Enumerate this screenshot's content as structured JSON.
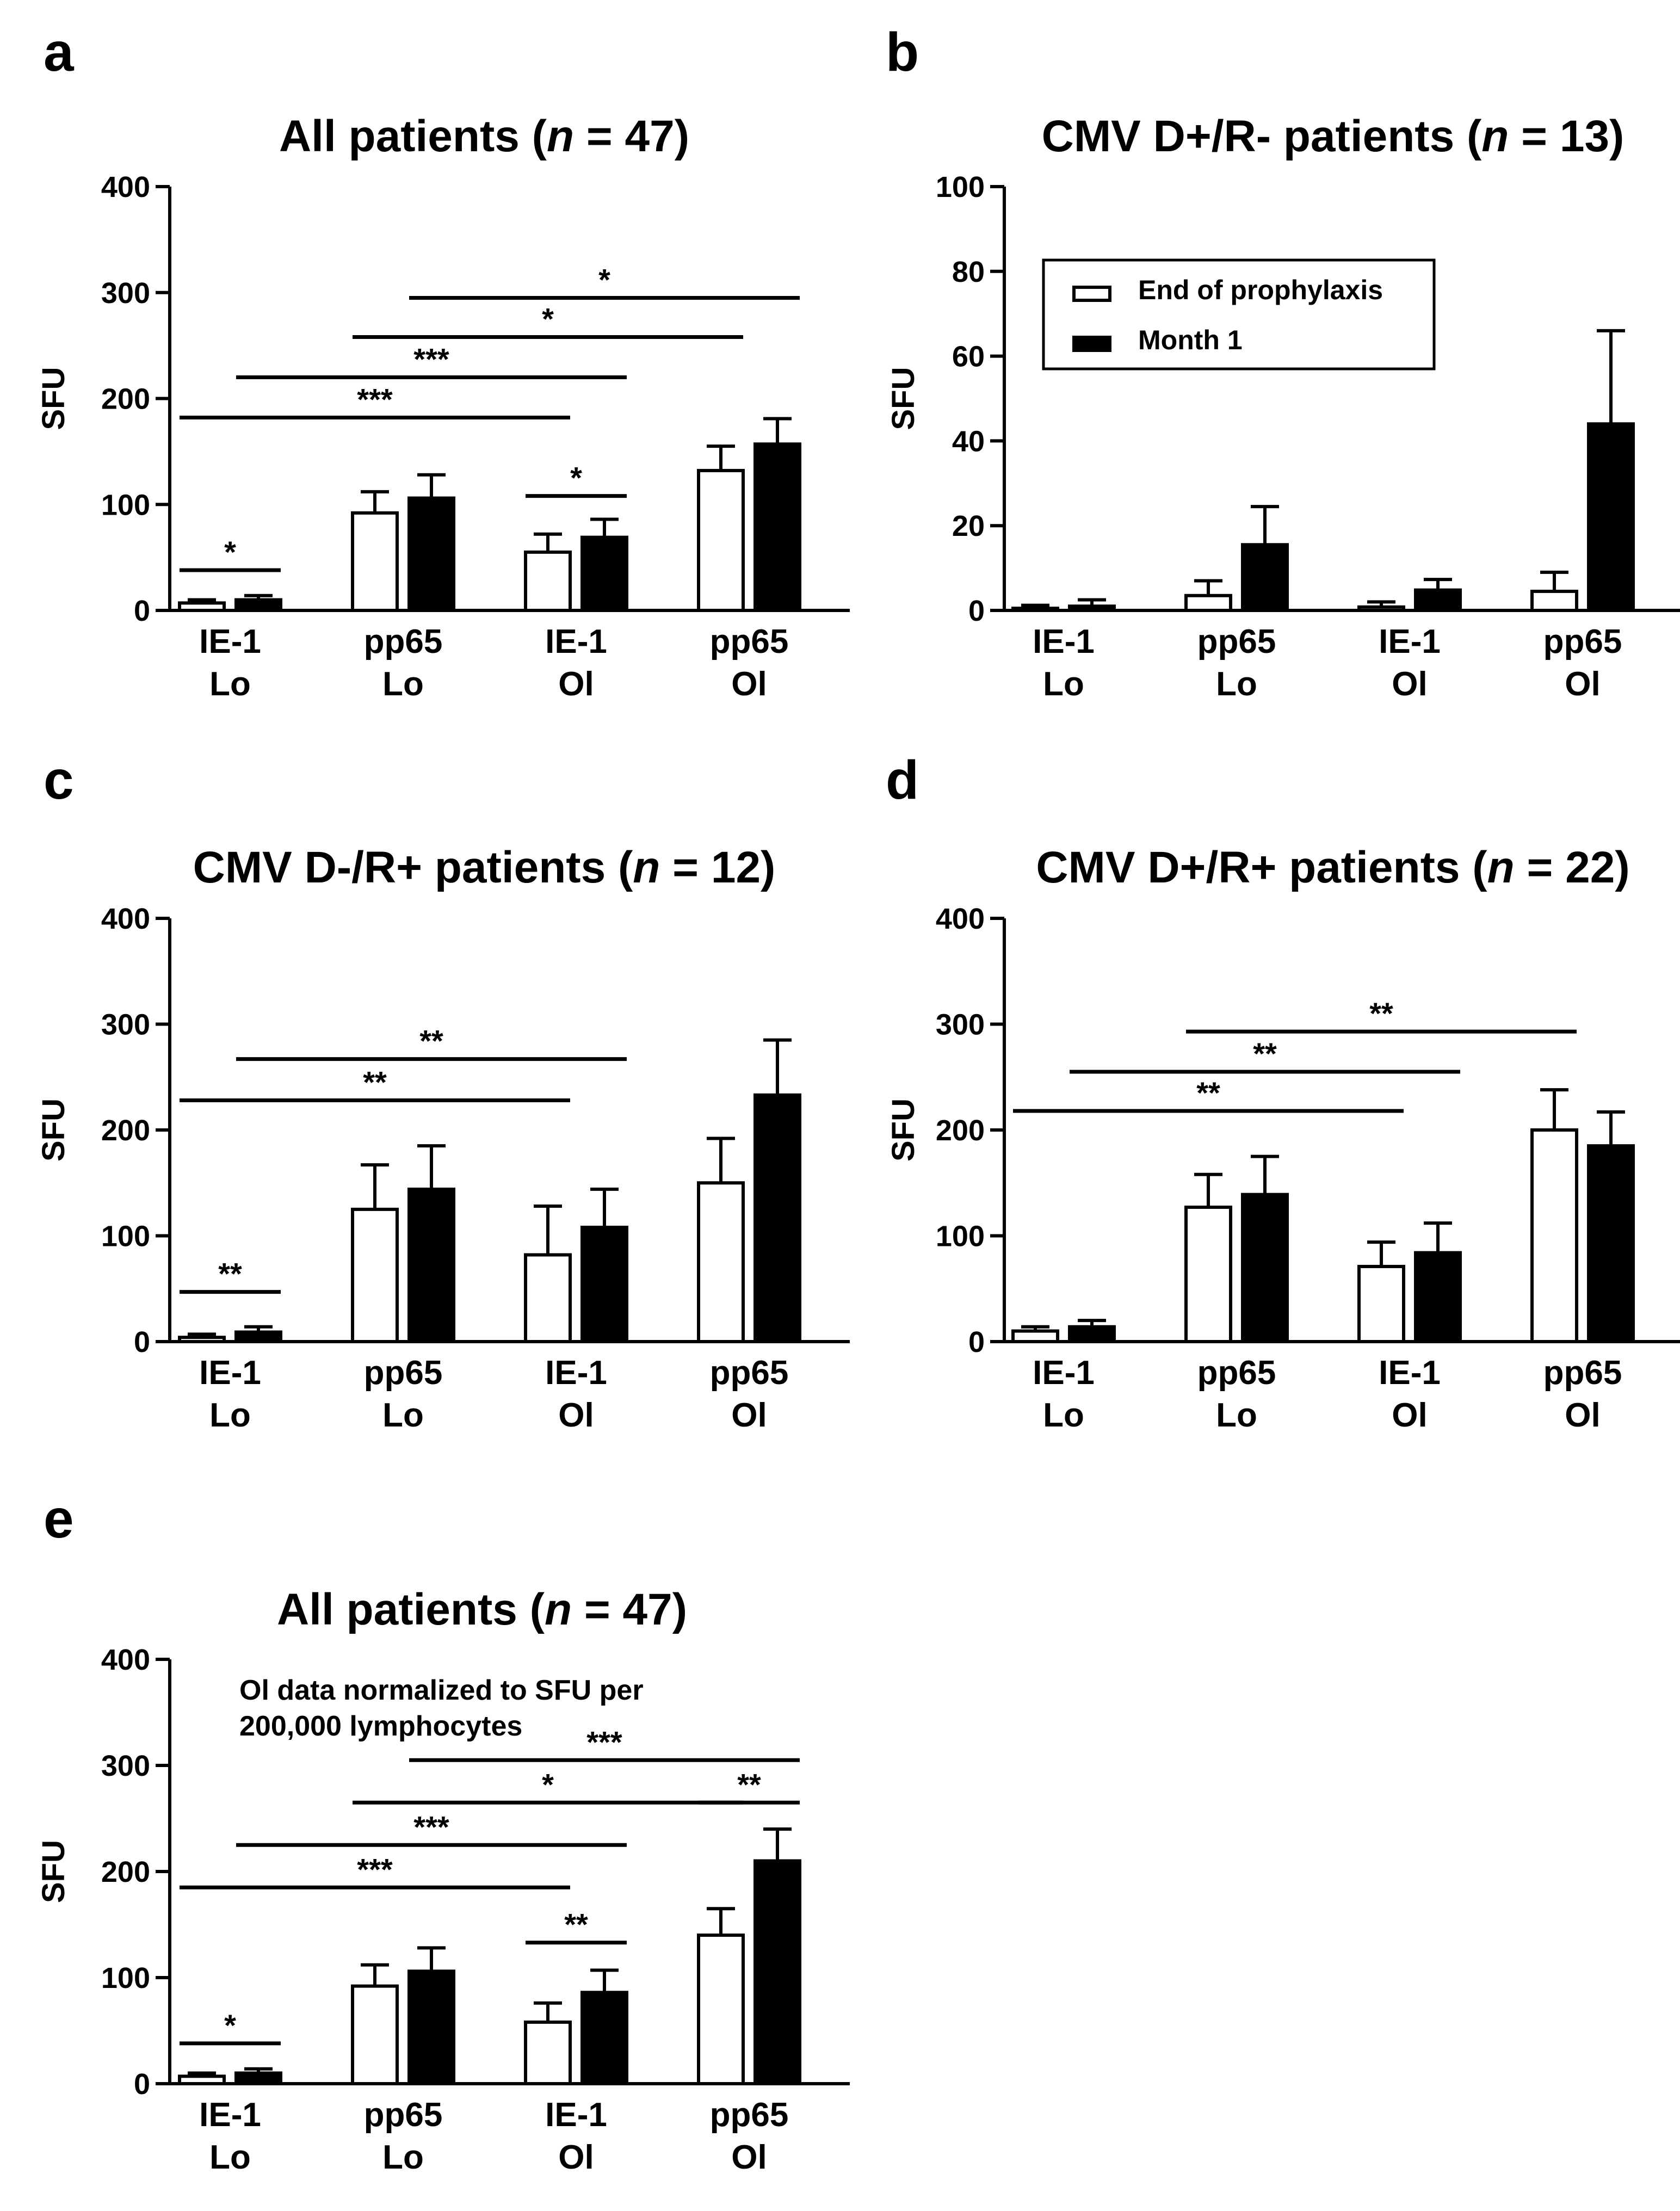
{
  "legend": {
    "items": [
      {
        "label": "End of prophylaxis",
        "fill": "#ffffff"
      },
      {
        "label": "Month 1",
        "fill": "#000000"
      }
    ]
  },
  "chart_data": [
    {
      "id": "a",
      "type": "bar",
      "panel_letter": "a",
      "title": "All patients (n = 47)",
      "title_parts": [
        "All patients (",
        "n",
        " = 47)"
      ],
      "ylabel": "SFU",
      "ylim": [
        0,
        400
      ],
      "yticks": [
        "0",
        "100",
        "200",
        "300",
        "400"
      ],
      "categories": [
        [
          "IE-1",
          "Lo"
        ],
        [
          "pp65",
          "Lo"
        ],
        [
          "IE-1",
          "Ol"
        ],
        [
          "pp65",
          "Ol"
        ]
      ],
      "series": [
        {
          "name": "End of prophylaxis",
          "values": [
            7,
            92,
            55,
            132
          ],
          "errors": [
            3,
            20,
            17,
            23
          ]
        },
        {
          "name": "Month 1",
          "values": [
            10,
            106,
            69,
            157
          ],
          "errors": [
            4,
            22,
            17,
            24
          ]
        }
      ],
      "significance": [
        {
          "label": "*",
          "from": [
            0,
            0
          ],
          "to": [
            0,
            1
          ],
          "y": 38
        },
        {
          "label": "***",
          "from": [
            0,
            0
          ],
          "to": [
            2,
            0
          ],
          "y": 182
        },
        {
          "label": "***",
          "from": [
            0,
            1
          ],
          "to": [
            2,
            1
          ],
          "y": 220
        },
        {
          "label": "*",
          "from": [
            1,
            0
          ],
          "to": [
            3,
            0
          ],
          "y": 258
        },
        {
          "label": "*",
          "from": [
            1,
            1
          ],
          "to": [
            3,
            1
          ],
          "y": 295
        },
        {
          "label": "*",
          "from": [
            2,
            0
          ],
          "to": [
            2,
            1
          ],
          "y": 108
        }
      ]
    },
    {
      "id": "b",
      "type": "bar",
      "panel_letter": "b",
      "title": "CMV D+/R- patients (n = 13)",
      "title_parts": [
        "CMV D+/R- patients (",
        "n",
        " = 13)"
      ],
      "ylabel": "SFU",
      "ylim": [
        0,
        100
      ],
      "yticks": [
        "0",
        "20",
        "40",
        "60",
        "80",
        "100"
      ],
      "categories": [
        [
          "IE-1",
          "Lo"
        ],
        [
          "pp65",
          "Lo"
        ],
        [
          "IE-1",
          "Ol"
        ],
        [
          "pp65",
          "Ol"
        ]
      ],
      "series": [
        {
          "name": "End of prophylaxis",
          "values": [
            0.5,
            3.5,
            0.8,
            4.5
          ],
          "errors": [
            0.7,
            3.5,
            1.2,
            4.5
          ]
        },
        {
          "name": "Month 1",
          "values": [
            1,
            15.5,
            4.8,
            44
          ],
          "errors": [
            1.5,
            9,
            2.5,
            22
          ]
        }
      ],
      "significance": [],
      "legend": "top-left"
    },
    {
      "id": "c",
      "type": "bar",
      "panel_letter": "c",
      "title": "CMV D-/R+ patients (n = 12)",
      "title_parts": [
        "CMV D-/R+ patients (",
        "n",
        " = 12)"
      ],
      "ylabel": "SFU",
      "ylim": [
        0,
        400
      ],
      "yticks": [
        "0",
        "100",
        "200",
        "300",
        "400"
      ],
      "categories": [
        [
          "IE-1",
          "Lo"
        ],
        [
          "pp65",
          "Lo"
        ],
        [
          "IE-1",
          "Ol"
        ],
        [
          "pp65",
          "Ol"
        ]
      ],
      "series": [
        {
          "name": "End of prophylaxis",
          "values": [
            4,
            125,
            82,
            150
          ],
          "errors": [
            3,
            42,
            46,
            42
          ]
        },
        {
          "name": "Month 1",
          "values": [
            9,
            144,
            108,
            233
          ],
          "errors": [
            5,
            41,
            36,
            52
          ]
        }
      ],
      "significance": [
        {
          "label": "**",
          "from": [
            0,
            0
          ],
          "to": [
            0,
            1
          ],
          "y": 47
        },
        {
          "label": "**",
          "from": [
            0,
            0
          ],
          "to": [
            2,
            0
          ],
          "y": 228
        },
        {
          "label": "**",
          "from": [
            0,
            1
          ],
          "to": [
            2,
            1
          ],
          "y": 267
        }
      ]
    },
    {
      "id": "d",
      "type": "bar",
      "panel_letter": "d",
      "title": "CMV D+/R+ patients (n = 22)",
      "title_parts": [
        "CMV D+/R+ patients (",
        "n",
        " = 22)"
      ],
      "ylabel": "SFU",
      "ylim": [
        0,
        400
      ],
      "yticks": [
        "0",
        "100",
        "200",
        "300",
        "400"
      ],
      "categories": [
        [
          "IE-1",
          "Lo"
        ],
        [
          "pp65",
          "Lo"
        ],
        [
          "IE-1",
          "Ol"
        ],
        [
          "pp65",
          "Ol"
        ]
      ],
      "series": [
        {
          "name": "End of prophylaxis",
          "values": [
            10,
            127,
            71,
            200
          ],
          "errors": [
            4,
            31,
            23,
            38
          ]
        },
        {
          "name": "Month 1",
          "values": [
            14,
            139,
            84,
            185
          ],
          "errors": [
            6,
            36,
            28,
            32
          ]
        }
      ],
      "significance": [
        {
          "label": "**",
          "from": [
            0,
            0
          ],
          "to": [
            2,
            0
          ],
          "y": 218
        },
        {
          "label": "**",
          "from": [
            0,
            1
          ],
          "to": [
            2,
            1
          ],
          "y": 255
        },
        {
          "label": "**",
          "from": [
            1,
            0
          ],
          "to": [
            3,
            0
          ],
          "y": 293
        }
      ]
    },
    {
      "id": "e",
      "type": "bar",
      "panel_letter": "e",
      "title": "All patients (n = 47)",
      "title_parts": [
        "All patients (",
        "n",
        " = 47)"
      ],
      "ylabel": "SFU",
      "ylim": [
        0,
        400
      ],
      "yticks": [
        "0",
        "100",
        "200",
        "300",
        "400"
      ],
      "annotation": [
        "Ol data normalized to SFU per",
        "200,000 lymphocytes"
      ],
      "categories": [
        [
          "IE-1",
          "Lo"
        ],
        [
          "pp65",
          "Lo"
        ],
        [
          "IE-1",
          "Ol"
        ],
        [
          "pp65",
          "Ol"
        ]
      ],
      "series": [
        {
          "name": "End of prophylaxis",
          "values": [
            7,
            92,
            58,
            140
          ],
          "errors": [
            3,
            20,
            18,
            25
          ]
        },
        {
          "name": "Month 1",
          "values": [
            10,
            106,
            86,
            210
          ],
          "errors": [
            4,
            22,
            21,
            30
          ]
        }
      ],
      "significance": [
        {
          "label": "*",
          "from": [
            0,
            0
          ],
          "to": [
            0,
            1
          ],
          "y": 38
        },
        {
          "label": "***",
          "from": [
            0,
            0
          ],
          "to": [
            2,
            0
          ],
          "y": 185
        },
        {
          "label": "***",
          "from": [
            0,
            1
          ],
          "to": [
            2,
            1
          ],
          "y": 225
        },
        {
          "label": "*",
          "from": [
            1,
            0
          ],
          "to": [
            3,
            0
          ],
          "y": 265
        },
        {
          "label": "***",
          "from": [
            1,
            1
          ],
          "to": [
            3,
            1
          ],
          "y": 305
        },
        {
          "label": "**",
          "from": [
            2,
            0
          ],
          "to": [
            2,
            1
          ],
          "y": 133
        },
        {
          "label": "**",
          "from": [
            3,
            0
          ],
          "to": [
            3,
            1
          ],
          "y": 265
        }
      ]
    }
  ]
}
